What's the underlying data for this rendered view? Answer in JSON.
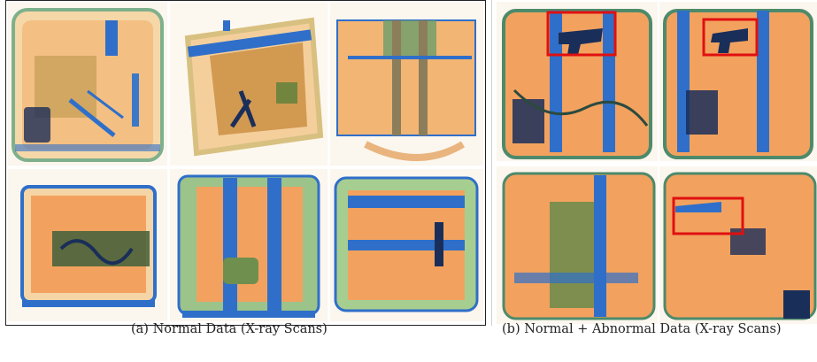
{
  "figure": {
    "panel_a": {
      "caption": "(a) Normal Data (X-ray Scans)",
      "scans": [
        {
          "id": "a1",
          "kind": "normal"
        },
        {
          "id": "a2",
          "kind": "normal"
        },
        {
          "id": "a3",
          "kind": "normal"
        },
        {
          "id": "a4",
          "kind": "normal"
        },
        {
          "id": "a5",
          "kind": "normal"
        },
        {
          "id": "a6",
          "kind": "normal"
        }
      ]
    },
    "panel_b": {
      "caption": "(b) Normal + Abnormal Data (X-ray Scans)",
      "scans": [
        {
          "id": "b1",
          "kind": "abnormal",
          "marked": true
        },
        {
          "id": "b2",
          "kind": "abnormal",
          "marked": true
        },
        {
          "id": "b3",
          "kind": "normal",
          "marked": false
        },
        {
          "id": "b4",
          "kind": "abnormal",
          "marked": true
        }
      ]
    },
    "colors": {
      "organic": "#f29a52",
      "inorganic_green": "#8fc47a",
      "metal_blue": "#2f6fc9",
      "dense_dark": "#1a2e5a",
      "marker_red": "#e01010"
    }
  }
}
